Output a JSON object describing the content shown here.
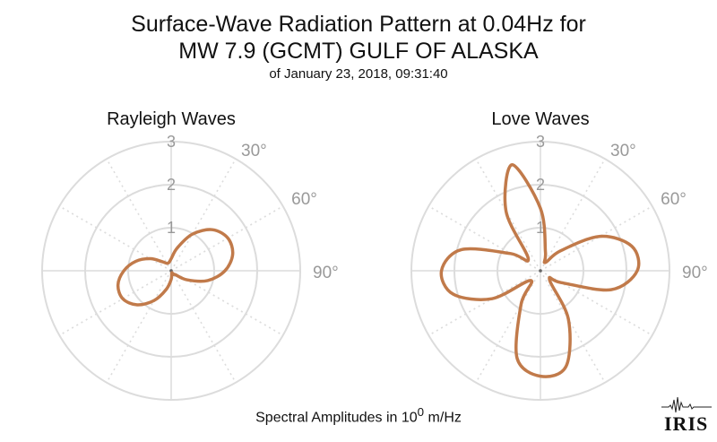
{
  "title": {
    "line1": "Surface-Wave Radiation Pattern at 0.04Hz for",
    "line2": "MW 7.9 (GCMT) GULF OF ALASKA",
    "subtitle": "of January 23, 2018, 09:31:40"
  },
  "footer": {
    "prefix": "Spectral Amplitudes in 10",
    "exponent": "0",
    "suffix": " m/Hz"
  },
  "logo": {
    "text": "IRIS"
  },
  "colors": {
    "pattern": "#c17a4a",
    "grid": "#dcdcdc",
    "tick_text": "#999999"
  },
  "chart_data": [
    {
      "type": "polar-line",
      "title": "Rayleigh Waves",
      "radial_ticks": [
        "1",
        "2",
        "3"
      ],
      "radial_max": 3,
      "angle_ticks": [
        "30°",
        "60°",
        "90°"
      ],
      "grid": true,
      "series": [
        {
          "azimuth_deg": [
            0,
            15,
            30,
            45,
            60,
            75,
            90,
            105,
            120,
            135,
            150,
            165,
            180,
            195,
            210,
            225,
            240,
            255,
            270,
            285,
            300,
            315,
            330,
            345
          ],
          "amplitude": [
            0.28,
            0.55,
            0.98,
            1.35,
            1.52,
            1.48,
            1.25,
            0.88,
            0.42,
            0.12,
            0.1,
            0.05,
            0.2,
            0.45,
            0.8,
            1.12,
            1.3,
            1.28,
            1.1,
            0.85,
            0.56,
            0.3,
            0.2,
            0.2
          ]
        }
      ]
    },
    {
      "type": "polar-line",
      "title": "Love Waves",
      "radial_ticks": [
        "1",
        "2",
        "3"
      ],
      "radial_max": 3,
      "angle_ticks": [
        "30°",
        "60°",
        "90°"
      ],
      "grid": true,
      "series": [
        {
          "azimuth_deg": [
            0,
            15,
            30,
            45,
            60,
            75,
            90,
            105,
            120,
            135,
            150,
            165,
            180,
            195,
            210,
            225,
            240,
            255,
            270,
            285,
            300,
            315,
            330,
            345
          ],
          "amplitude": [
            1.45,
            0.45,
            0.22,
            0.65,
            1.6,
            2.2,
            2.25,
            1.7,
            0.55,
            0.3,
            1.3,
            2.3,
            2.45,
            2.1,
            0.9,
            0.32,
            1.3,
            2.1,
            2.3,
            1.9,
            0.8,
            0.4,
            1.6,
            2.55
          ]
        }
      ]
    }
  ]
}
